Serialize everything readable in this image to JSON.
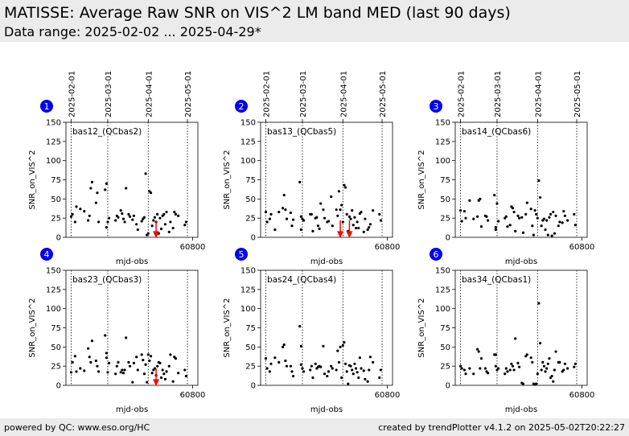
{
  "header": {
    "title": "MATISSE: Average Raw SNR on VIS^2 LM band MED (last 90 days)",
    "subtitle": "Data range: 2025-02-02 ... 2025-04-29*"
  },
  "footer": {
    "left": "powered by QC: www.eso.org/HC",
    "right": "created by trendPlotter v4.1.2 on 2025-05-02T20:22:27"
  },
  "colors": {
    "background": "#ffffff",
    "band": "#ebebeb",
    "points": "#000000",
    "arrows": "#ff0000",
    "badge": "#0000ee"
  },
  "shared_axes": {
    "date_ticks": [
      "2025-02-01",
      "2025-03-01",
      "2025-04-01",
      "2025-05-01"
    ],
    "date_mjd": [
      60707,
      60735,
      60766,
      60796
    ],
    "xlabel": "mjd-obs",
    "xtick_label": "60800",
    "xtick_value": 60800,
    "xlim": [
      60703,
      60804
    ],
    "ylabel": "SNR_on_VIS^2",
    "ylim": [
      0,
      150
    ],
    "yticks": [
      0,
      25,
      50,
      75,
      100,
      125,
      150
    ]
  },
  "chart_data": [
    {
      "type": "scatter",
      "badge": "1",
      "label": "bas12_(QCbas2)",
      "x": [
        60707,
        60708,
        60710,
        60711,
        60714,
        60717,
        60720,
        60721,
        60722,
        60723,
        60726,
        60727,
        60728,
        60733,
        60734,
        60734,
        60735,
        60736,
        60741,
        60742,
        60743,
        60745,
        60746,
        60747,
        60748,
        60749,
        60751,
        60752,
        60754,
        60755,
        60757,
        60758,
        60761,
        60762,
        60763,
        60764,
        60765,
        60766,
        60767,
        60768,
        60769,
        60770,
        60771,
        60772,
        60773,
        60774,
        60775,
        60776,
        60777,
        60778,
        60779,
        60780,
        60782,
        60783,
        60785,
        60786,
        60787,
        60789,
        60794,
        60795
      ],
      "y": [
        27,
        30,
        20,
        40,
        37,
        34,
        22,
        28,
        64,
        72,
        45,
        58,
        20,
        62,
        70,
        13,
        20,
        25,
        22,
        28,
        26,
        35,
        31,
        24,
        20,
        64,
        30,
        27,
        23,
        28,
        17,
        10,
        21,
        24,
        26,
        83,
        3,
        5,
        60,
        58,
        15,
        22,
        26,
        20,
        30,
        5,
        25,
        11,
        28,
        30,
        17,
        33,
        7,
        20,
        12,
        33,
        30,
        28,
        16,
        20
      ],
      "arrows_x": [
        60772
      ]
    },
    {
      "type": "scatter",
      "badge": "2",
      "label": "bas13_(QCbas5)",
      "x": [
        60707,
        60708,
        60710,
        60711,
        60714,
        60717,
        60720,
        60721,
        60722,
        60723,
        60726,
        60727,
        60728,
        60733,
        60734,
        60734,
        60735,
        60736,
        60741,
        60742,
        60743,
        60745,
        60746,
        60747,
        60748,
        60749,
        60751,
        60752,
        60754,
        60755,
        60757,
        60758,
        60761,
        60762,
        60763,
        60764,
        60765,
        60766,
        60767,
        60768,
        60769,
        60770,
        60771,
        60772,
        60773,
        60774,
        60775,
        60776,
        60777,
        60778,
        60779,
        60780,
        60782,
        60783,
        60785,
        60786,
        60787,
        60789,
        60794,
        60795
      ],
      "y": [
        33,
        20,
        24,
        30,
        10,
        33,
        38,
        55,
        36,
        24,
        32,
        15,
        23,
        72,
        10,
        27,
        24,
        22,
        30,
        30,
        8,
        25,
        26,
        15,
        11,
        44,
        36,
        25,
        20,
        21,
        53,
        15,
        36,
        28,
        60,
        36,
        42,
        20,
        68,
        65,
        30,
        8,
        27,
        24,
        35,
        16,
        26,
        12,
        20,
        12,
        31,
        33,
        7,
        24,
        10,
        13,
        17,
        35,
        30,
        22
      ],
      "arrows_x": [
        60764,
        60771
      ]
    },
    {
      "type": "scatter",
      "badge": "3",
      "label": "bas14_(QCbas6)",
      "x": [
        60707,
        60708,
        60710,
        60711,
        60714,
        60717,
        60720,
        60721,
        60722,
        60723,
        60726,
        60727,
        60728,
        60733,
        60734,
        60734,
        60735,
        60736,
        60741,
        60742,
        60743,
        60745,
        60746,
        60747,
        60748,
        60749,
        60751,
        60752,
        60754,
        60755,
        60757,
        60758,
        60761,
        60762,
        60763,
        60764,
        60765,
        60766,
        60767,
        60768,
        60769,
        60770,
        60771,
        60772,
        60773,
        60774,
        60775,
        60776,
        60777,
        60778,
        60779,
        60780,
        60782,
        60783,
        60785,
        60786,
        60787,
        60789,
        60794,
        60795
      ],
      "y": [
        35,
        21,
        34,
        25,
        48,
        24,
        27,
        48,
        50,
        14,
        28,
        27,
        22,
        55,
        10,
        13,
        44,
        21,
        25,
        27,
        14,
        16,
        40,
        38,
        33,
        8,
        28,
        25,
        26,
        6,
        30,
        45,
        37,
        15,
        3,
        35,
        30,
        25,
        74,
        52,
        15,
        22,
        24,
        10,
        22,
        3,
        26,
        30,
        2,
        33,
        5,
        28,
        15,
        20,
        19,
        34,
        28,
        22,
        30,
        16
      ],
      "arrows_x": []
    },
    {
      "type": "scatter",
      "badge": "4",
      "label": "bas23_(QCbas3)",
      "x": [
        60707,
        60708,
        60710,
        60711,
        60714,
        60717,
        60720,
        60721,
        60722,
        60723,
        60726,
        60727,
        60728,
        60733,
        60734,
        60734,
        60735,
        60736,
        60741,
        60742,
        60743,
        60745,
        60746,
        60747,
        60748,
        60749,
        60751,
        60752,
        60754,
        60755,
        60757,
        60758,
        60761,
        60762,
        60763,
        60764,
        60765,
        60766,
        60767,
        60768,
        60769,
        60770,
        60771,
        60772,
        60773,
        60774,
        60775,
        60776,
        60777,
        60778,
        60779,
        60780,
        60782,
        60783,
        60785,
        60786,
        60787,
        60789,
        60794,
        60795
      ],
      "y": [
        17,
        30,
        38,
        18,
        22,
        19,
        48,
        37,
        30,
        58,
        32,
        25,
        18,
        65,
        42,
        36,
        17,
        29,
        15,
        25,
        30,
        17,
        20,
        16,
        20,
        62,
        30,
        25,
        4,
        29,
        37,
        20,
        40,
        33,
        15,
        27,
        4,
        40,
        32,
        38,
        16,
        20,
        22,
        13,
        25,
        30,
        29,
        10,
        20,
        15,
        8,
        18,
        25,
        40,
        5,
        37,
        35,
        16,
        20,
        12
      ],
      "arrows_x": [
        60772
      ]
    },
    {
      "type": "scatter",
      "badge": "5",
      "label": "bas24_(QCbas4)",
      "x": [
        60707,
        60708,
        60710,
        60711,
        60714,
        60717,
        60720,
        60721,
        60722,
        60723,
        60726,
        60727,
        60728,
        60733,
        60734,
        60734,
        60735,
        60736,
        60741,
        60742,
        60743,
        60745,
        60746,
        60747,
        60748,
        60749,
        60751,
        60752,
        60754,
        60755,
        60757,
        60758,
        60761,
        60762,
        60763,
        60764,
        60765,
        60766,
        60767,
        60768,
        60769,
        60770,
        60771,
        60772,
        60773,
        60774,
        60775,
        60776,
        60777,
        60778,
        60779,
        60780,
        60782,
        60783,
        60785,
        60786,
        60787,
        60789,
        60794,
        60795
      ],
      "y": [
        35,
        22,
        18,
        28,
        36,
        30,
        50,
        53,
        32,
        25,
        25,
        18,
        12,
        77,
        51,
        27,
        22,
        18,
        20,
        25,
        10,
        28,
        22,
        24,
        25,
        24,
        51,
        15,
        12,
        18,
        25,
        22,
        20,
        45,
        30,
        50,
        10,
        52,
        56,
        28,
        18,
        2,
        26,
        25,
        20,
        15,
        28,
        22,
        17,
        10,
        36,
        22,
        19,
        8,
        5,
        20,
        37,
        30,
        10,
        20
      ],
      "arrows_x": []
    },
    {
      "type": "scatter",
      "badge": "6",
      "label": "bas34_(QCbas1)",
      "x": [
        60707,
        60708,
        60710,
        60711,
        60714,
        60717,
        60720,
        60721,
        60722,
        60723,
        60726,
        60727,
        60728,
        60733,
        60734,
        60734,
        60735,
        60736,
        60741,
        60742,
        60743,
        60745,
        60746,
        60747,
        60748,
        60749,
        60751,
        60752,
        60754,
        60755,
        60757,
        60758,
        60761,
        60762,
        60763,
        60764,
        60765,
        60766,
        60767,
        60768,
        60769,
        60770,
        60771,
        60772,
        60773,
        60774,
        60775,
        60776,
        60777,
        60778,
        60779,
        60780,
        60782,
        60783,
        60785,
        60786,
        60787,
        60789,
        60794,
        60795
      ],
      "y": [
        25,
        22,
        20,
        15,
        22,
        15,
        47,
        44,
        22,
        35,
        22,
        18,
        16,
        40,
        40,
        25,
        20,
        22,
        15,
        22,
        18,
        20,
        28,
        25,
        20,
        61,
        29,
        24,
        3,
        2,
        38,
        40,
        36,
        30,
        2,
        1,
        2,
        15,
        107,
        55,
        20,
        30,
        25,
        18,
        22,
        28,
        35,
        10,
        12,
        5,
        20,
        44,
        30,
        30,
        18,
        20,
        28,
        22,
        24,
        28
      ],
      "arrows_x": []
    }
  ]
}
